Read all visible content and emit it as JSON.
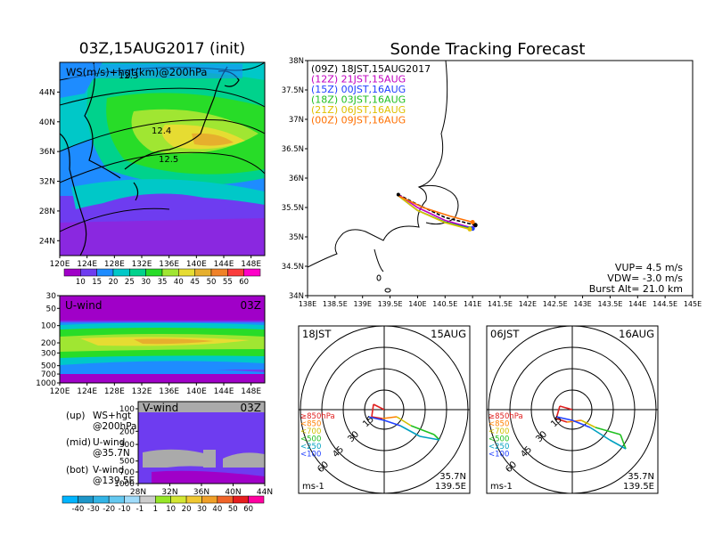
{
  "map": {
    "title": "03Z,15AUG2017 (init)",
    "inner_label": "WS(m/s)+hgt(km)@200hPa",
    "contour_labels": [
      "12.3",
      "12.4",
      "12.5"
    ],
    "lat_ticks": [
      "44N",
      "40N",
      "36N",
      "32N",
      "28N",
      "24N"
    ],
    "lon_ticks": [
      "120E",
      "124E",
      "128E",
      "132E",
      "136E",
      "140E",
      "144E",
      "148E"
    ],
    "colorbar_ticks": [
      "10",
      "15",
      "20",
      "25",
      "30",
      "35",
      "40",
      "45",
      "50",
      "55",
      "60"
    ],
    "colorbar_colors": [
      "#a000c8",
      "#6e3cf0",
      "#1e8cff",
      "#00c8c8",
      "#00d28c",
      "#28dc28",
      "#a0e632",
      "#e6dc32",
      "#e6af2d",
      "#f08228",
      "#fa3c3c",
      "#ff00c8"
    ]
  },
  "uwind": {
    "label": "U-wind",
    "time": "03Z",
    "p_ticks": [
      "30",
      "50",
      "100",
      "200",
      "300",
      "500",
      "700",
      "1000"
    ],
    "lon_ticks": [
      "120E",
      "124E",
      "128E",
      "132E",
      "136E",
      "140E",
      "144E",
      "148E"
    ]
  },
  "vwind": {
    "label": "V-wind",
    "time": "03Z",
    "p_ticks": [
      "100",
      "200",
      "300",
      "500",
      "700",
      "1000"
    ],
    "lat_ticks": [
      "28N",
      "32N",
      "36N",
      "40N",
      "44N"
    ]
  },
  "notes": [
    {
      "key": "(up)",
      "line1": "WS+hgt",
      "line2": "@200hPa"
    },
    {
      "key": "(mid)",
      "line1": "U-wind",
      "line2": "@35.7N"
    },
    {
      "key": "(bot)",
      "line1": "V-wind",
      "line2": "@139.5E"
    }
  ],
  "wind_colorbar": {
    "ticks": [
      "-40",
      "-30",
      "-20",
      "-10",
      "-1",
      "1",
      "10",
      "20",
      "30",
      "40",
      "50",
      "60"
    ],
    "colors": [
      "#00b4ff",
      "#1e96c8",
      "#32b4e6",
      "#64c8f0",
      "#a0dcfa",
      "#cccccc",
      "#96e628",
      "#d2e632",
      "#f0c832",
      "#f0a028",
      "#f06428",
      "#e61e1e",
      "#ff00a0"
    ]
  },
  "tracking": {
    "title": "Sonde Tracking Forecast",
    "lat_ticks": [
      "38N",
      "37.5N",
      "37N",
      "36.5N",
      "36N",
      "35.5N",
      "35N",
      "34.5N",
      "34N"
    ],
    "lon_ticks": [
      "138E",
      "138.5E",
      "139E",
      "139.5E",
      "140E",
      "140.5E",
      "141E",
      "141.5E",
      "142E",
      "142.5E",
      "143E",
      "143.5E",
      "144E",
      "144.5E",
      "145E"
    ],
    "legend": [
      {
        "text": "(09Z) 18JST,15AUG2017",
        "color": "#000000"
      },
      {
        "text": "(12Z) 21JST,15AUG",
        "color": "#c000c0"
      },
      {
        "text": "(15Z) 00JST,16AUG",
        "color": "#2040ff"
      },
      {
        "text": "(18Z) 03JST,16AUG",
        "color": "#20c020"
      },
      {
        "text": "(21Z) 06JST,16AUG",
        "color": "#e0c000"
      },
      {
        "text": "(00Z) 09JST,16AUG",
        "color": "#ff7000"
      }
    ],
    "params": [
      "VUP= 4.5 m/s",
      "VDW= -3.0 m/s",
      "Burst Alt= 21.0 km"
    ]
  },
  "hodographs": [
    {
      "time": "18JST",
      "date": "15AUG",
      "lat": "35.7N",
      "lon": "139.5E",
      "unit": "ms-1",
      "ring_labels": [
        "15",
        "30",
        "45",
        "60"
      ]
    },
    {
      "time": "06JST",
      "date": "16AUG",
      "lat": "35.7N",
      "lon": "139.5E",
      "unit": "ms-1",
      "ring_labels": [
        "15",
        "30",
        "45",
        "60"
      ]
    }
  ],
  "hodo_legend": [
    {
      "text": "≥850hPa",
      "color": "#e02020"
    },
    {
      "text": "<850",
      "color": "#ff8000"
    },
    {
      "text": "<700",
      "color": "#d0c000"
    },
    {
      "text": "<500",
      "color": "#20c020"
    },
    {
      "text": "<250",
      "color": "#00a0c0"
    },
    {
      "text": "<100",
      "color": "#2040ff"
    }
  ],
  "chart_data": [
    {
      "type": "heatmap",
      "title": "03Z,15AUG2017 (init)",
      "field": "WS(m/s)+hgt(km)@200hPa",
      "xlim": [
        120,
        150
      ],
      "ylim": [
        22,
        48
      ],
      "contours": [
        {
          "value": 12.3
        },
        {
          "value": 12.4
        },
        {
          "value": 12.5
        }
      ]
    },
    {
      "type": "heatmap",
      "title": "U-wind",
      "xlim": [
        120,
        150
      ],
      "ylim": [
        1000,
        30
      ],
      "yscale": "log"
    },
    {
      "type": "heatmap",
      "title": "V-wind",
      "xlim": [
        28,
        44
      ],
      "ylim": [
        1000,
        100
      ],
      "yscale": "log"
    },
    {
      "type": "line",
      "title": "Sonde Tracking Forecast",
      "xlim": [
        138,
        145
      ],
      "ylim": [
        34,
        38
      ],
      "series": [
        {
          "name": "(09Z) 18JST,15AUG2017",
          "x": [
            139.65,
            140.0,
            140.5,
            141.05
          ],
          "y": [
            35.72,
            35.55,
            35.33,
            35.2
          ]
        },
        {
          "name": "(12Z) 21JST,15AUG",
          "x": [
            139.65,
            140.0,
            140.5,
            141.0
          ],
          "y": [
            35.72,
            35.5,
            35.28,
            35.15
          ]
        },
        {
          "name": "(15Z) 00JST,16AUG",
          "x": [
            139.65,
            140.0,
            140.5,
            141.0
          ],
          "y": [
            35.7,
            35.45,
            35.25,
            35.14
          ]
        },
        {
          "name": "(18Z) 03JST,16AUG",
          "x": [
            139.65,
            140.0,
            140.5,
            140.95
          ],
          "y": [
            35.7,
            35.45,
            35.25,
            35.14
          ]
        },
        {
          "name": "(21Z) 06JST,16AUG",
          "x": [
            139.65,
            140.0,
            140.5,
            140.95
          ],
          "y": [
            35.7,
            35.45,
            35.24,
            35.13
          ]
        },
        {
          "name": "(00Z) 09JST,16AUG",
          "x": [
            139.65,
            140.1,
            140.6,
            141.0
          ],
          "y": [
            35.7,
            35.5,
            35.35,
            35.25
          ]
        }
      ]
    }
  ]
}
